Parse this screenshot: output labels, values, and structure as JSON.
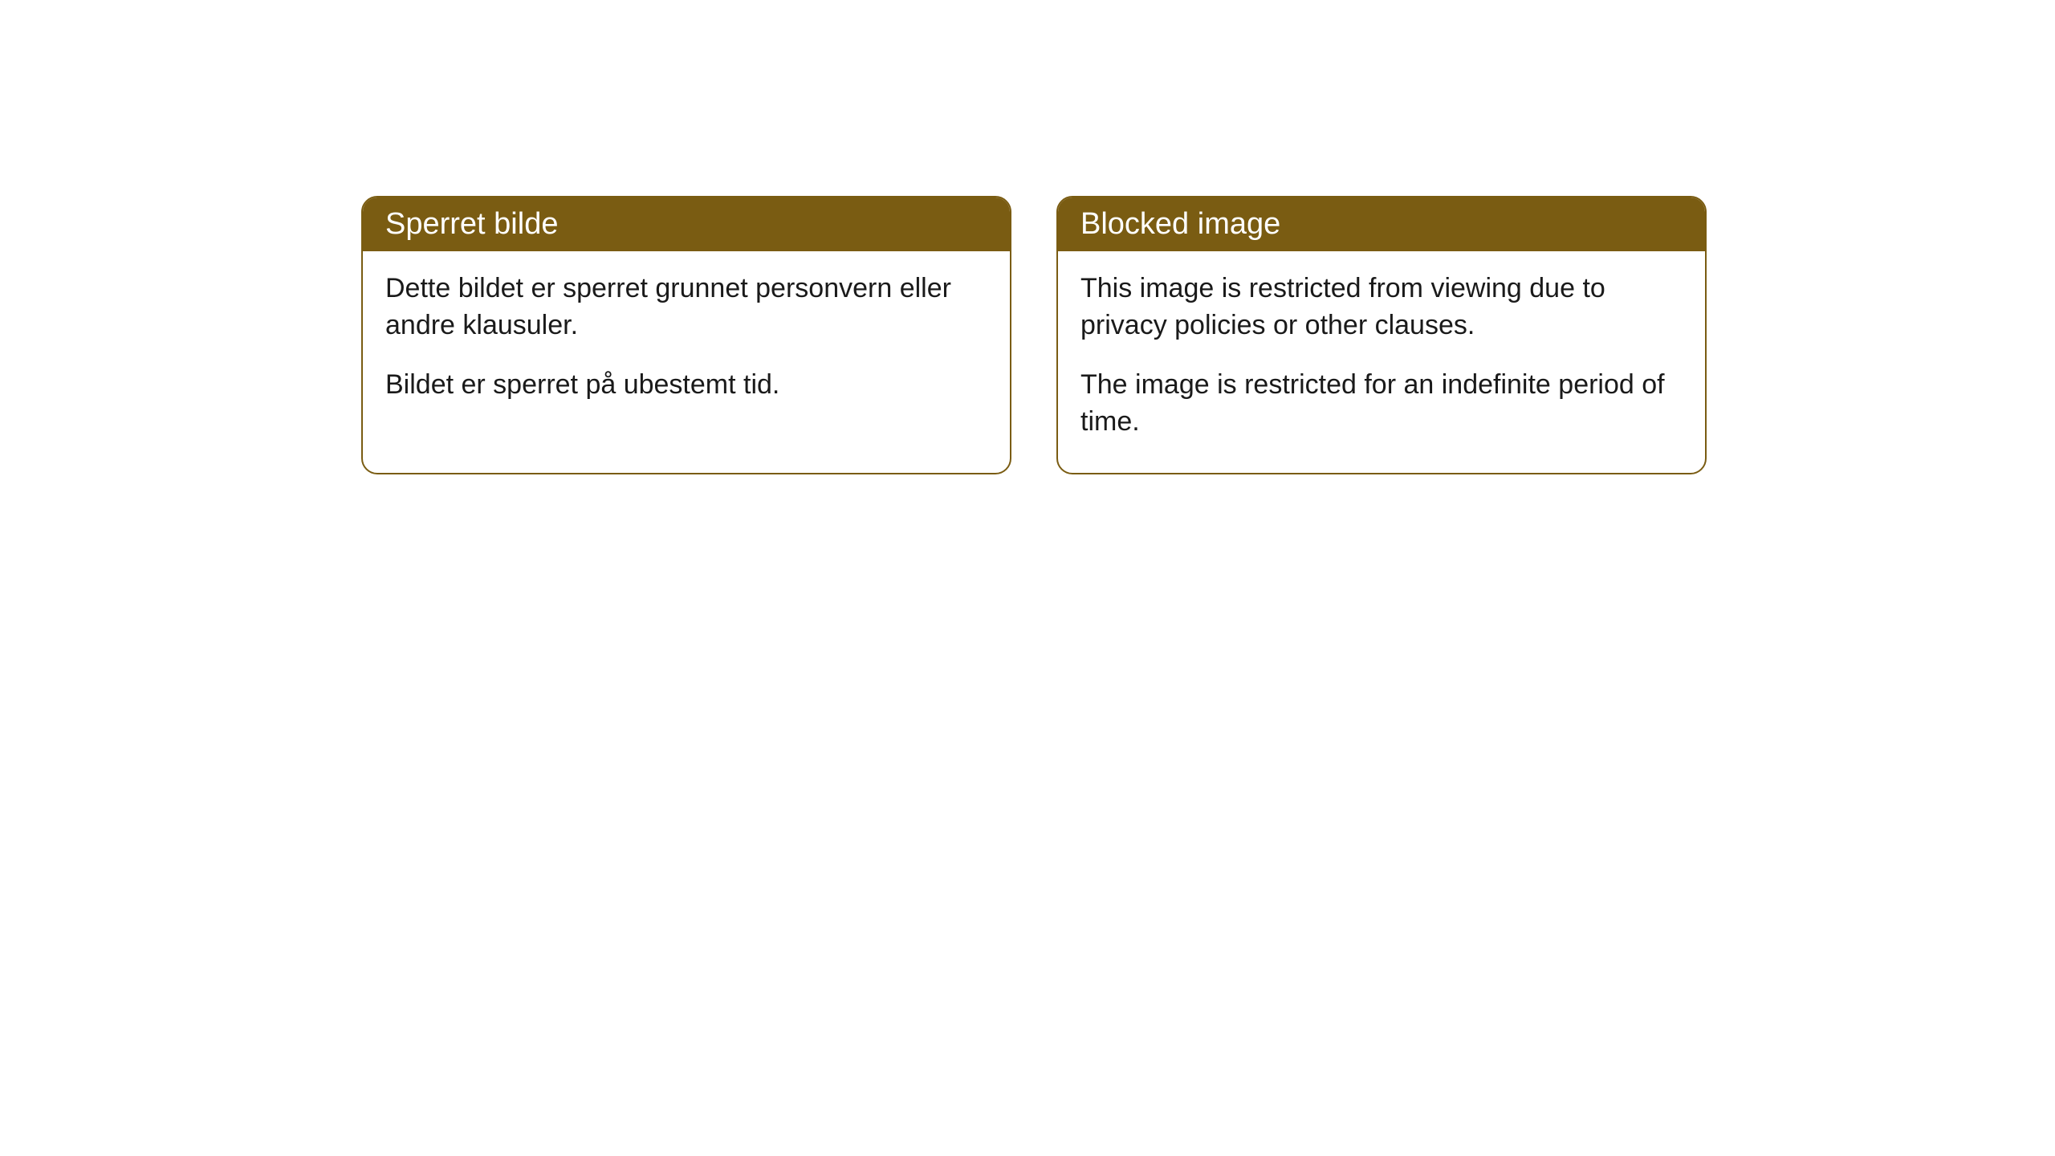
{
  "cards": [
    {
      "title": "Sperret bilde",
      "paragraph1": "Dette bildet er sperret grunnet personvern eller andre klausuler.",
      "paragraph2": "Bildet er sperret på ubestemt tid."
    },
    {
      "title": "Blocked image",
      "paragraph1": "This image is restricted from viewing due to privacy policies or other clauses.",
      "paragraph2": "The image is restricted for an indefinite period of time."
    }
  ],
  "styling": {
    "header_bg_color": "#7a5c12",
    "header_text_color": "#ffffff",
    "border_color": "#7a5c12",
    "body_text_color": "#1a1a1a",
    "page_bg_color": "#ffffff",
    "border_radius": 20,
    "title_fontsize": 38,
    "body_fontsize": 34
  }
}
